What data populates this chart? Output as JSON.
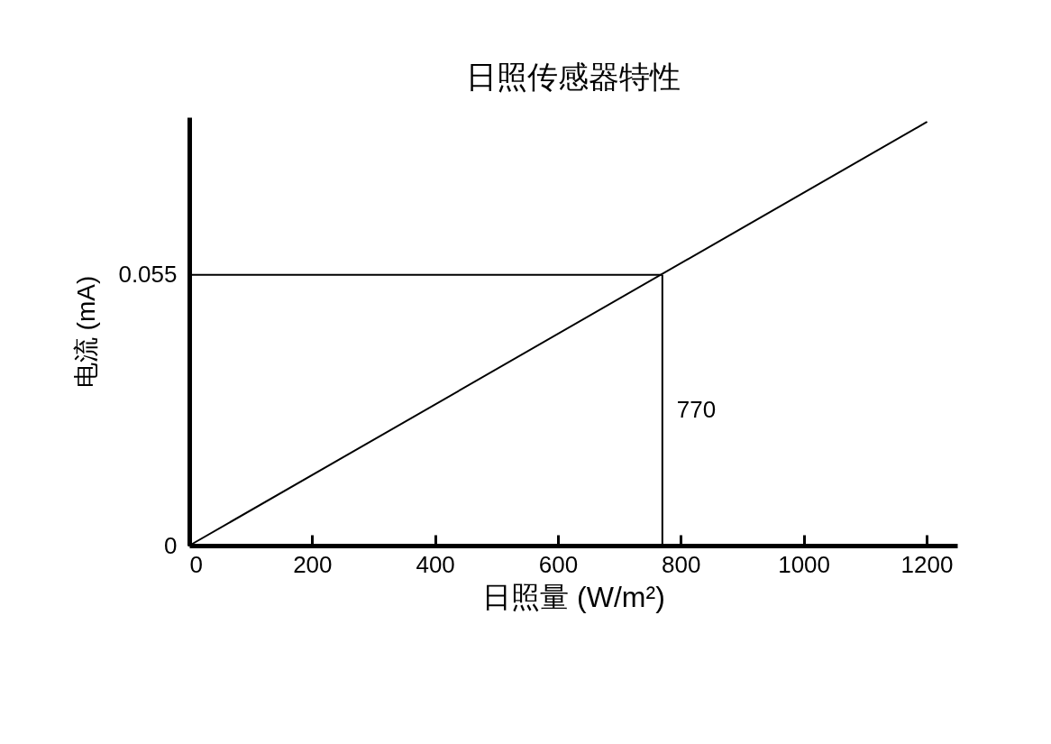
{
  "chart_data": {
    "type": "line",
    "title": "日照传感器特性",
    "xlabel": "日照量 (W/m²)",
    "ylabel": "电流 (mA)",
    "x": [
      0,
      1200
    ],
    "series": [
      {
        "color": "#000000",
        "values": [
          0,
          0.086
        ]
      }
    ],
    "xlim": [
      0,
      1250
    ],
    "xticks": [
      0,
      200,
      400,
      600,
      800,
      1000,
      1200
    ],
    "ylim": [
      0,
      0.087
    ],
    "yticks": [
      0,
      0.055
    ],
    "ref_lines": [
      {
        "axis": "y",
        "value": 0.055
      },
      {
        "axis": "x",
        "value": 770,
        "label": "770"
      }
    ],
    "grid": false,
    "marker": "none",
    "line_style": "solid"
  }
}
